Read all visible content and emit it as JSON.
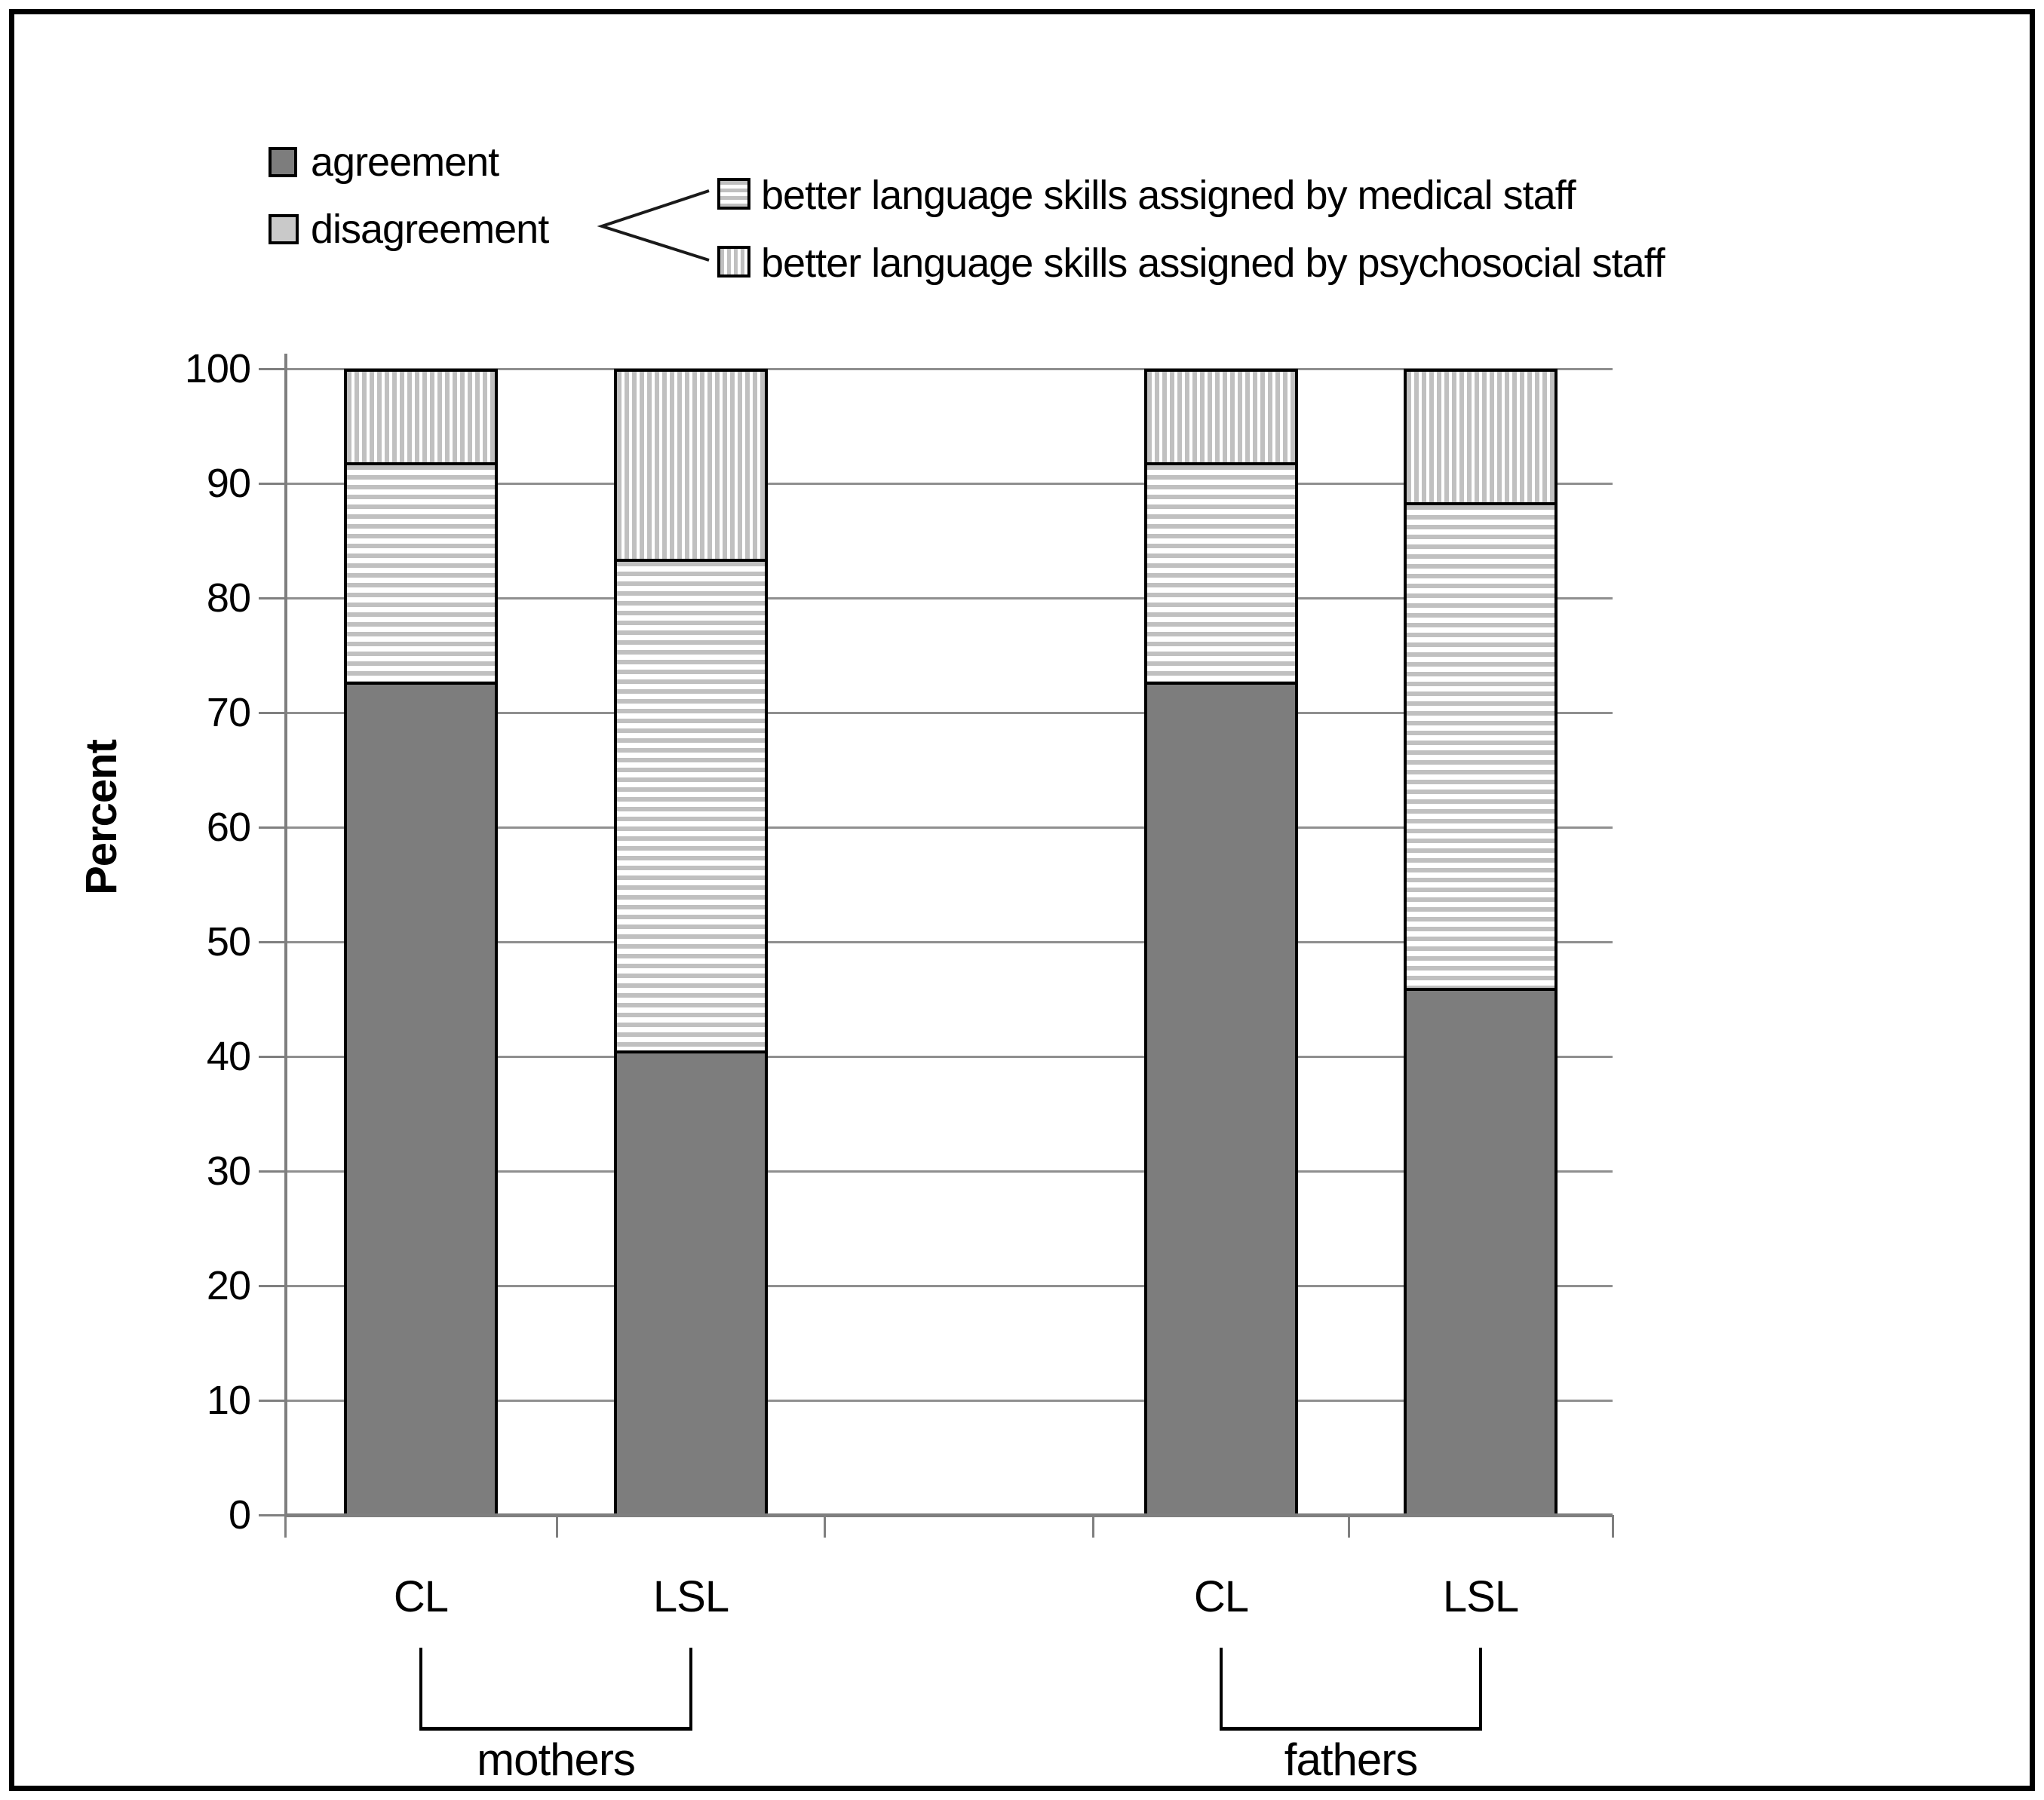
{
  "legend": {
    "agreement": {
      "label": "agreement",
      "pattern": "solid-dark"
    },
    "disagreement": {
      "label": "disagreement",
      "pattern": "solid-light"
    },
    "disagreement_variants": [
      {
        "label": "better language skills assigned by medical staff",
        "pattern": "h-stripes"
      },
      {
        "label": "better language skills assigned by psychosocial staff",
        "pattern": "v-stripes"
      }
    ]
  },
  "y_axis": {
    "title": "Percent",
    "tick_values": [
      0,
      10,
      20,
      30,
      40,
      50,
      60,
      70,
      80,
      90,
      100
    ]
  },
  "x_axis": {
    "groups": [
      {
        "label": "mothers",
        "bars": [
          "CL",
          "LSL"
        ]
      },
      {
        "label": "fathers",
        "bars": [
          "CL",
          "LSL"
        ]
      }
    ]
  },
  "colors": {
    "agreement_fill": "#7d7d7d",
    "disagreement_fill": "#c9c9c9",
    "stripe_gray": "#c0c0c0",
    "gridline": "#8f8f8f",
    "axis": "#7f7f7f",
    "text": "#000000",
    "frame": "#000000"
  },
  "chart_data": {
    "type": "bar",
    "subtype": "stacked-percent",
    "categories": [
      "CL (mothers)",
      "LSL (mothers)",
      "CL (fathers)",
      "LSL (fathers)"
    ],
    "series": [
      {
        "name": "agreement",
        "pattern": "solid",
        "values": [
          73,
          40.5,
          73,
          46
        ]
      },
      {
        "name": "better language skills assigned by medical staff",
        "pattern": "h-stripes",
        "values": [
          19,
          43,
          19,
          42.5
        ]
      },
      {
        "name": "better language skills assigned by psychosocial staff",
        "pattern": "v-stripes",
        "values": [
          8,
          16.5,
          8,
          11.5
        ]
      }
    ],
    "stack_boundaries_percent": {
      "CL_mothers": [
        73,
        92,
        100
      ],
      "LSL_mothers": [
        40.5,
        83.5,
        100
      ],
      "CL_fathers": [
        73,
        92,
        100
      ],
      "LSL_fathers": [
        46,
        88.5,
        100
      ]
    },
    "title": "",
    "xlabel": "",
    "ylabel": "Percent",
    "ylim": [
      0,
      100
    ],
    "grid": true,
    "legend_position": "top"
  }
}
